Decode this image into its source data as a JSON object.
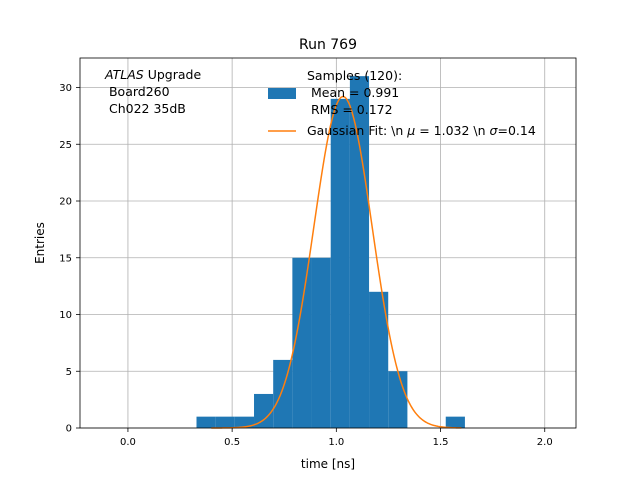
{
  "chart_data": {
    "type": "bar",
    "title": "Run 769",
    "xlabel": "time [ns]",
    "ylabel": "Entries",
    "xlim": [
      -0.23,
      2.15
    ],
    "ylim": [
      0,
      32.6
    ],
    "grid": true,
    "xticks": [
      0.0,
      0.5,
      1.0,
      1.5,
      2.0
    ],
    "xtick_labels": [
      "0.0",
      "0.5",
      "1.0",
      "1.5",
      "2.0"
    ],
    "yticks": [
      0,
      5,
      10,
      15,
      20,
      25,
      30
    ],
    "ytick_labels": [
      "0",
      "5",
      "10",
      "15",
      "20",
      "25",
      "30"
    ],
    "bins": [
      {
        "x0": 0.329,
        "x1": 0.421,
        "count": 1
      },
      {
        "x0": 0.421,
        "x1": 0.513,
        "count": 1
      },
      {
        "x0": 0.513,
        "x1": 0.605,
        "count": 1
      },
      {
        "x0": 0.605,
        "x1": 0.697,
        "count": 3
      },
      {
        "x0": 0.697,
        "x1": 0.789,
        "count": 6
      },
      {
        "x0": 0.789,
        "x1": 0.881,
        "count": 15
      },
      {
        "x0": 0.881,
        "x1": 0.973,
        "count": 15
      },
      {
        "x0": 0.973,
        "x1": 1.065,
        "count": 29
      },
      {
        "x0": 1.065,
        "x1": 1.157,
        "count": 31
      },
      {
        "x0": 1.157,
        "x1": 1.249,
        "count": 12
      },
      {
        "x0": 1.249,
        "x1": 1.341,
        "count": 5
      },
      {
        "x0": 1.341,
        "x1": 1.433,
        "count": 0
      },
      {
        "x0": 1.433,
        "x1": 1.525,
        "count": 0
      },
      {
        "x0": 1.525,
        "x1": 1.617,
        "count": 1
      }
    ],
    "fit": {
      "mu": 1.032,
      "sigma": 0.14,
      "amplitude": 29.2,
      "x_range": [
        0.4,
        1.6
      ]
    },
    "legend": {
      "placement": "top-right",
      "entries": [
        {
          "kind": "patch",
          "lines": [
            "Samples (120):",
            " Mean = 0.991",
            " RMS = 0.172"
          ]
        },
        {
          "kind": "line",
          "text_parts": [
            "Gaussian Fit: \\n ",
            "μ",
            " = 1.032 \\n ",
            "σ",
            "=0.14"
          ]
        }
      ]
    },
    "annotation": {
      "placement": "top-left",
      "italic": "ATLAS",
      "rest": " Upgrade",
      "lines": [
        " Board260",
        " Ch022 35dB"
      ]
    },
    "colors": {
      "bars": "#1f77b4",
      "fit": "#ff7f0e",
      "grid": "#b0b0b0",
      "axes": "#000000"
    }
  }
}
